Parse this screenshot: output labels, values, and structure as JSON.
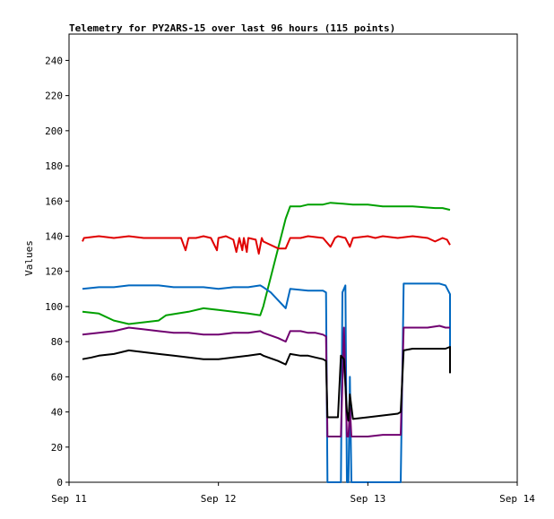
{
  "chart_data": {
    "type": "line",
    "title": "Telemetry for PY2ARS-15 over last 96 hours (115 points)",
    "xlabel": "",
    "ylabel": "Values",
    "ylim": [
      0,
      255
    ],
    "yticks": [
      0,
      20,
      40,
      60,
      80,
      100,
      120,
      140,
      160,
      180,
      200,
      220,
      240
    ],
    "xlim": [
      0,
      3
    ],
    "xtick_labels": [
      "Sep 11",
      "Sep 12",
      "Sep 13",
      "Sep 14"
    ],
    "x_unit": "days after Sep 11 00:00",
    "grid": false,
    "legend": "none",
    "series": [
      {
        "color": "#00a000",
        "points": [
          [
            0.09,
            97
          ],
          [
            0.2,
            96
          ],
          [
            0.3,
            92
          ],
          [
            0.4,
            90
          ],
          [
            0.6,
            92
          ],
          [
            0.65,
            95
          ],
          [
            0.8,
            97
          ],
          [
            0.9,
            99
          ],
          [
            1.0,
            98
          ],
          [
            1.1,
            97
          ],
          [
            1.2,
            96
          ],
          [
            1.28,
            95
          ],
          [
            1.3,
            100
          ],
          [
            1.45,
            150
          ],
          [
            1.48,
            157
          ],
          [
            1.55,
            157
          ],
          [
            1.6,
            158
          ],
          [
            1.7,
            158
          ],
          [
            1.75,
            159
          ],
          [
            1.9,
            158
          ],
          [
            2.0,
            158
          ],
          [
            2.1,
            157
          ],
          [
            2.3,
            157
          ],
          [
            2.45,
            156
          ],
          [
            2.5,
            156
          ],
          [
            2.55,
            155
          ]
        ]
      },
      {
        "color": "#e00000",
        "points": [
          [
            0.09,
            137
          ],
          [
            0.1,
            139
          ],
          [
            0.2,
            140
          ],
          [
            0.3,
            139
          ],
          [
            0.4,
            140
          ],
          [
            0.5,
            139
          ],
          [
            0.6,
            139
          ],
          [
            0.7,
            139
          ],
          [
            0.75,
            139
          ],
          [
            0.78,
            132
          ],
          [
            0.8,
            139
          ],
          [
            0.85,
            139
          ],
          [
            0.9,
            140
          ],
          [
            0.95,
            139
          ],
          [
            0.99,
            132
          ],
          [
            1.0,
            139
          ],
          [
            1.05,
            140
          ],
          [
            1.1,
            138
          ],
          [
            1.12,
            131
          ],
          [
            1.14,
            139
          ],
          [
            1.16,
            132
          ],
          [
            1.17,
            139
          ],
          [
            1.19,
            131
          ],
          [
            1.2,
            139
          ],
          [
            1.25,
            138
          ],
          [
            1.27,
            130
          ],
          [
            1.29,
            139
          ],
          [
            1.3,
            137
          ],
          [
            1.4,
            133
          ],
          [
            1.45,
            133
          ],
          [
            1.48,
            139
          ],
          [
            1.55,
            139
          ],
          [
            1.6,
            140
          ],
          [
            1.7,
            139
          ],
          [
            1.75,
            134
          ],
          [
            1.78,
            139
          ],
          [
            1.8,
            140
          ],
          [
            1.85,
            139
          ],
          [
            1.88,
            134
          ],
          [
            1.9,
            139
          ],
          [
            2.0,
            140
          ],
          [
            2.05,
            139
          ],
          [
            2.1,
            140
          ],
          [
            2.2,
            139
          ],
          [
            2.3,
            140
          ],
          [
            2.4,
            139
          ],
          [
            2.45,
            137
          ],
          [
            2.5,
            139
          ],
          [
            2.53,
            138
          ],
          [
            2.55,
            135
          ]
        ]
      },
      {
        "color": "#0068c0",
        "points": [
          [
            0.09,
            110
          ],
          [
            0.2,
            111
          ],
          [
            0.3,
            111
          ],
          [
            0.4,
            112
          ],
          [
            0.6,
            112
          ],
          [
            0.7,
            111
          ],
          [
            0.9,
            111
          ],
          [
            1.0,
            110
          ],
          [
            1.1,
            111
          ],
          [
            1.2,
            111
          ],
          [
            1.28,
            112
          ],
          [
            1.3,
            111
          ],
          [
            1.35,
            108
          ],
          [
            1.45,
            99
          ],
          [
            1.48,
            110
          ],
          [
            1.6,
            109
          ],
          [
            1.7,
            109
          ],
          [
            1.72,
            108
          ],
          [
            1.73,
            0
          ],
          [
            1.82,
            0
          ],
          [
            1.83,
            108
          ],
          [
            1.85,
            112
          ],
          [
            1.86,
            0
          ],
          [
            1.87,
            0
          ],
          [
            1.88,
            60
          ],
          [
            1.89,
            0
          ],
          [
            1.9,
            0
          ],
          [
            1.92,
            0
          ],
          [
            2.0,
            0
          ],
          [
            2.1,
            0
          ],
          [
            2.2,
            0
          ],
          [
            2.22,
            0
          ],
          [
            2.24,
            113
          ],
          [
            2.3,
            113
          ],
          [
            2.4,
            113
          ],
          [
            2.48,
            113
          ],
          [
            2.52,
            112
          ],
          [
            2.55,
            107
          ],
          [
            2.55,
            76
          ]
        ]
      },
      {
        "color": "#700070",
        "points": [
          [
            0.09,
            84
          ],
          [
            0.2,
            85
          ],
          [
            0.3,
            86
          ],
          [
            0.4,
            88
          ],
          [
            0.5,
            87
          ],
          [
            0.6,
            86
          ],
          [
            0.7,
            85
          ],
          [
            0.8,
            85
          ],
          [
            0.9,
            84
          ],
          [
            1.0,
            84
          ],
          [
            1.1,
            85
          ],
          [
            1.2,
            85
          ],
          [
            1.28,
            86
          ],
          [
            1.3,
            85
          ],
          [
            1.4,
            82
          ],
          [
            1.45,
            80
          ],
          [
            1.48,
            86
          ],
          [
            1.55,
            86
          ],
          [
            1.6,
            85
          ],
          [
            1.65,
            85
          ],
          [
            1.7,
            84
          ],
          [
            1.72,
            83
          ],
          [
            1.73,
            26
          ],
          [
            1.8,
            26
          ],
          [
            1.82,
            26
          ],
          [
            1.84,
            88
          ],
          [
            1.86,
            26
          ],
          [
            1.87,
            26
          ],
          [
            1.88,
            42
          ],
          [
            1.89,
            26
          ],
          [
            1.9,
            26
          ],
          [
            2.0,
            26
          ],
          [
            2.1,
            27
          ],
          [
            2.2,
            27
          ],
          [
            2.22,
            27
          ],
          [
            2.24,
            88
          ],
          [
            2.3,
            88
          ],
          [
            2.4,
            88
          ],
          [
            2.48,
            89
          ],
          [
            2.52,
            88
          ],
          [
            2.55,
            88
          ]
        ]
      },
      {
        "color": "#000000",
        "points": [
          [
            0.09,
            70
          ],
          [
            0.15,
            71
          ],
          [
            0.2,
            72
          ],
          [
            0.3,
            73
          ],
          [
            0.4,
            75
          ],
          [
            0.5,
            74
          ],
          [
            0.6,
            73
          ],
          [
            0.7,
            72
          ],
          [
            0.8,
            71
          ],
          [
            0.9,
            70
          ],
          [
            1.0,
            70
          ],
          [
            1.1,
            71
          ],
          [
            1.2,
            72
          ],
          [
            1.28,
            73
          ],
          [
            1.3,
            72
          ],
          [
            1.4,
            69
          ],
          [
            1.45,
            67
          ],
          [
            1.48,
            73
          ],
          [
            1.55,
            72
          ],
          [
            1.6,
            72
          ],
          [
            1.65,
            71
          ],
          [
            1.7,
            70
          ],
          [
            1.72,
            69
          ],
          [
            1.73,
            37
          ],
          [
            1.76,
            37
          ],
          [
            1.8,
            37
          ],
          [
            1.82,
            72
          ],
          [
            1.84,
            70
          ],
          [
            1.86,
            40
          ],
          [
            1.87,
            35
          ],
          [
            1.88,
            50
          ],
          [
            1.9,
            36
          ],
          [
            2.0,
            37
          ],
          [
            2.1,
            38
          ],
          [
            2.2,
            39
          ],
          [
            2.22,
            40
          ],
          [
            2.24,
            75
          ],
          [
            2.3,
            76
          ],
          [
            2.4,
            76
          ],
          [
            2.48,
            76
          ],
          [
            2.52,
            76
          ],
          [
            2.55,
            77
          ],
          [
            2.55,
            62
          ]
        ]
      }
    ]
  }
}
